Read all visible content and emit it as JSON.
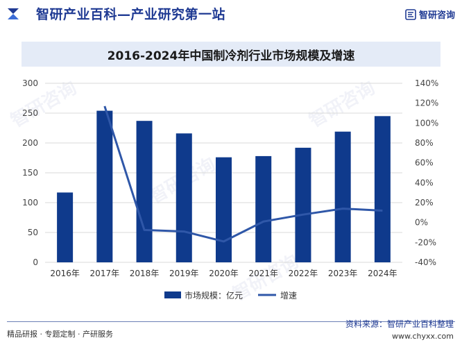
{
  "header": {
    "site_title": "智研产业百科—产业研究第一站",
    "brand_name": "智研咨询"
  },
  "watermark_text": "智研咨询",
  "chart_data": {
    "type": "bar",
    "title": "2016-2024年中国制冷剂行业市场规模及增速",
    "categories": [
      "2016年",
      "2017年",
      "2018年",
      "2019年",
      "2020年",
      "2021年",
      "2022年",
      "2023年",
      "2024年"
    ],
    "series": [
      {
        "name": "市场规模：亿元",
        "type": "bar",
        "axis": "left",
        "values": [
          117,
          254,
          237,
          216,
          176,
          178,
          192,
          219,
          245
        ]
      },
      {
        "name": "增速",
        "type": "line",
        "axis": "right",
        "values": [
          null,
          117,
          -7.5,
          -9,
          -19,
          1,
          8,
          14,
          12
        ]
      }
    ],
    "y_left": {
      "min": 0,
      "max": 300,
      "ticks": [
        "0",
        "50",
        "100",
        "150",
        "200",
        "250",
        "300"
      ]
    },
    "y_right": {
      "min": -40,
      "max": 140,
      "ticks": [
        "-40%",
        "-20%",
        "0%",
        "20%",
        "40%",
        "60%",
        "80%",
        "100%",
        "120%",
        "140%"
      ]
    },
    "grid": true,
    "legend_position": "bottom",
    "colors": {
      "bar": "#0f3a8c",
      "line": "#2f57a8",
      "grid": "#d9d9d9"
    }
  },
  "footer": {
    "left": "精品研报 · 专题定制 · 产研服务",
    "source": "资料来源：智研产业百科整理",
    "url": "www.chyxx.com"
  }
}
